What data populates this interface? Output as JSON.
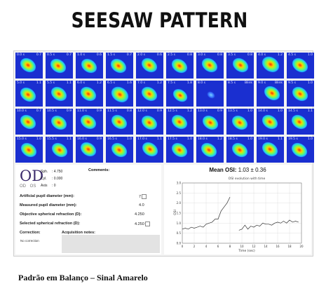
{
  "title": "SEESAW PATTERN",
  "caption": "Padrão em Balanço – Sinal Amarelo",
  "tiles": [
    {
      "t": "0.0 s",
      "r": "0.7",
      "bx": 14,
      "by": 16,
      "s": 1.0
    },
    {
      "t": "0.5 s",
      "r": "0.7",
      "bx": 14,
      "by": 17,
      "s": 1.0
    },
    {
      "t": "1.0 s",
      "r": "0.6",
      "bx": 15,
      "by": 17,
      "s": 1.0
    },
    {
      "t": "1.5 s",
      "r": "0.7",
      "bx": 14,
      "by": 17,
      "s": 1.0
    },
    {
      "t": "2.0 s",
      "r": "0.6",
      "bx": 15,
      "by": 16,
      "s": 1.0
    },
    {
      "t": "2.5 s",
      "r": "0.8",
      "bx": 15,
      "by": 17,
      "s": 1.0
    },
    {
      "t": "3.0 s",
      "r": "0.8",
      "bx": 15,
      "by": 16,
      "s": 1.0
    },
    {
      "t": "3.5 s",
      "r": "0.8",
      "bx": 16,
      "by": 16,
      "s": 1.0
    },
    {
      "t": "4.0 s",
      "r": "1.2",
      "bx": 16,
      "by": 15,
      "s": 1.1
    },
    {
      "t": "4.5 s",
      "r": "1.0",
      "bx": 15,
      "by": 16,
      "s": 1.0
    },
    {
      "t": "5.0 s",
      "r": "1.1",
      "bx": 14,
      "by": 18,
      "s": 1.0
    },
    {
      "t": "5.5 s",
      "r": "1.1",
      "bx": 15,
      "by": 17,
      "s": 1.0
    },
    {
      "t": "6.0 s",
      "r": "1.2",
      "bx": 14,
      "by": 17,
      "s": 1.0
    },
    {
      "t": "6.5 s",
      "r": "1.6",
      "bx": 16,
      "by": 18,
      "s": 1.1
    },
    {
      "t": "7.0 s",
      "r": "1.2",
      "bx": 15,
      "by": 17,
      "s": 1.0
    },
    {
      "t": "7.5 s",
      "r": "1.8",
      "bx": 16,
      "by": 19,
      "s": 0.9
    },
    {
      "t": "8.0 s",
      "r": "",
      "bx": 17,
      "by": 18,
      "s": 0.5
    },
    {
      "t": "8.5 s",
      "r": "Blink",
      "bx": 0,
      "by": 0,
      "s": 0
    },
    {
      "t": "9.0 s",
      "r": "Blink",
      "bx": 18,
      "by": 16,
      "s": 1.0
    },
    {
      "t": "9.5 s",
      "r": "1.0",
      "bx": 15,
      "by": 17,
      "s": 1.0
    },
    {
      "t": "10.0 s",
      "r": "0.7",
      "bx": 14,
      "by": 17,
      "s": 1.0
    },
    {
      "t": "10.5 s",
      "r": "0.9",
      "bx": 15,
      "by": 18,
      "s": 1.0
    },
    {
      "t": "11.0 s",
      "r": "0.9",
      "bx": 14,
      "by": 17,
      "s": 1.0
    },
    {
      "t": "11.5 s",
      "r": "0.8",
      "bx": 15,
      "by": 17,
      "s": 1.0
    },
    {
      "t": "12.0 s",
      "r": "0.9",
      "bx": 15,
      "by": 18,
      "s": 1.0
    },
    {
      "t": "12.5 s",
      "r": "1.2",
      "bx": 15,
      "by": 17,
      "s": 1.0
    },
    {
      "t": "13.0 s",
      "r": "0.9",
      "bx": 16,
      "by": 18,
      "s": 1.0
    },
    {
      "t": "13.5 s",
      "r": "1.0",
      "bx": 15,
      "by": 18,
      "s": 1.0
    },
    {
      "t": "14.0 s",
      "r": "1.0",
      "bx": 15,
      "by": 17,
      "s": 1.0
    },
    {
      "t": "14.5 s",
      "r": "1.1",
      "bx": 14,
      "by": 17,
      "s": 1.0
    },
    {
      "t": "15.0 s",
      "r": "1.0",
      "bx": 15,
      "by": 17,
      "s": 1.0
    },
    {
      "t": "15.5 s",
      "r": "1.1",
      "bx": 16,
      "by": 17,
      "s": 1.0
    },
    {
      "t": "16.0 s",
      "r": "0.9",
      "bx": 14,
      "by": 16,
      "s": 1.0
    },
    {
      "t": "16.5 s",
      "r": "1.0",
      "bx": 15,
      "by": 17,
      "s": 1.0
    },
    {
      "t": "17.0 s",
      "r": "1.1",
      "bx": 16,
      "by": 16,
      "s": 1.0
    },
    {
      "t": "17.5 s",
      "r": "1.0",
      "bx": 15,
      "by": 17,
      "s": 1.0
    },
    {
      "t": "18.0 s",
      "r": "1.2",
      "bx": 14,
      "by": 17,
      "s": 1.0
    },
    {
      "t": "18.5 s",
      "r": "1.0",
      "bx": 15,
      "by": 17,
      "s": 1.0
    },
    {
      "t": "19.0 s",
      "r": "1.1",
      "bx": 15,
      "by": 16,
      "s": 1.0
    },
    {
      "t": "19.5 s",
      "r": "1.0",
      "bx": 14,
      "by": 17,
      "s": 1.0
    }
  ],
  "left_panel": {
    "eye": "OD",
    "eye_options": "OD OS",
    "sph_label": "Sph.",
    "sph_value": ": 4.750",
    "cyl_label": "Cyl.",
    "cyl_value": ": 0.000",
    "axis_label": "Axis",
    "axis_value": ": 0",
    "comments_label": "Comments:",
    "artificial_label": "Artificial pupil diameter (mm):",
    "artificial_value": "7",
    "measured_label": "Measured pupil diameter (mm):",
    "measured_value": "4.0",
    "objective_label": "Objective spherical refraction (D):",
    "objective_value": "4.250",
    "selected_label": "Selected spherical refraction (D):",
    "selected_value": "4.250",
    "correction_label": "Correction:",
    "correction_value": "No correction",
    "acq_label": "Acquisition notes:"
  },
  "right_panel": {
    "mean_osi_label": "Mean OSI:",
    "mean_osi_value": "1.03 ± 0.36"
  },
  "chart_data": {
    "type": "line",
    "title": "OSI evolution with time",
    "xlabel": "Time (sec)",
    "ylabel": "OSI",
    "xlim": [
      0,
      20
    ],
    "ylim": [
      0,
      3
    ],
    "xticks": [
      0,
      2,
      4,
      6,
      8,
      10,
      12,
      14,
      16,
      18,
      20
    ],
    "yticks": [
      0,
      0.5,
      1.0,
      1.5,
      2.0,
      2.5,
      3.0
    ],
    "series": [
      {
        "x": [
          0,
          0.5,
          1,
          1.5,
          2,
          2.5,
          3,
          3.5,
          4,
          4.5,
          5,
          5.5,
          6,
          6.5,
          7,
          7.5,
          8
        ],
        "y": [
          0.7,
          0.75,
          0.7,
          0.8,
          0.75,
          0.8,
          0.85,
          0.8,
          0.95,
          1.0,
          1.05,
          1.2,
          1.2,
          1.6,
          1.8,
          2.0,
          2.3
        ]
      },
      {
        "x": [
          9.5,
          10,
          10.5,
          11,
          11.5,
          12,
          12.5,
          13,
          13.5,
          14,
          14.5,
          15,
          15.5,
          16,
          16.5,
          17,
          17.5,
          18,
          18.5,
          19,
          19.5
        ],
        "y": [
          0.65,
          0.7,
          0.9,
          0.7,
          0.85,
          0.8,
          0.9,
          0.85,
          1.0,
          0.95,
          0.95,
          0.9,
          1.0,
          1.05,
          1.0,
          1.1,
          1.0,
          1.15,
          1.05,
          1.1,
          1.05
        ]
      }
    ]
  }
}
